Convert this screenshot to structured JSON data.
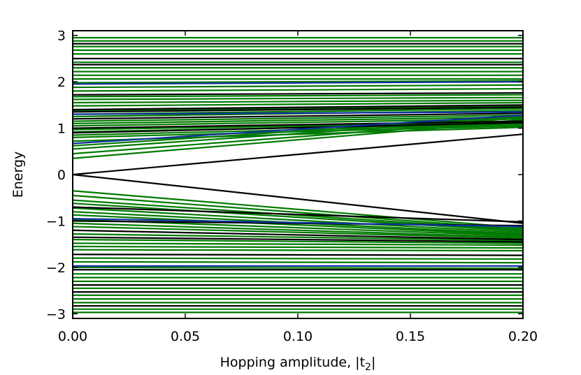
{
  "chart_data": {
    "type": "line",
    "title": "",
    "xlabel": "Hopping amplitude, |t",
    "xlabel_sub": "2",
    "xlabel_end": "|",
    "ylabel": "Energy",
    "xlim": [
      0.0,
      0.2
    ],
    "ylim": [
      -3.1,
      3.1
    ],
    "x_ticks": [
      0.0,
      0.05,
      0.1,
      0.15,
      0.2
    ],
    "x_tick_labels": [
      "0.00",
      "0.05",
      "0.10",
      "0.15",
      "0.20"
    ],
    "y_ticks": [
      -3,
      -2,
      -1,
      0,
      1,
      2,
      3
    ],
    "y_tick_labels": [
      "−3",
      "−2",
      "−1",
      "0",
      "1",
      "2",
      "3"
    ],
    "grid": false,
    "colors": {
      "green": "#007a00",
      "black": "#000000",
      "blue": "#1030a0"
    },
    "series": [
      {
        "color": "green",
        "y": [
          2.95,
          2.95
        ]
      },
      {
        "color": "green",
        "y": [
          2.88,
          2.88
        ]
      },
      {
        "color": "black",
        "y": [
          2.82,
          2.82
        ]
      },
      {
        "color": "green",
        "y": [
          2.76,
          2.76
        ]
      },
      {
        "color": "green",
        "y": [
          2.68,
          2.68
        ]
      },
      {
        "color": "green",
        "y": [
          2.6,
          2.6
        ]
      },
      {
        "color": "black",
        "y": [
          2.5,
          2.5
        ]
      },
      {
        "color": "green",
        "y": [
          2.42,
          2.42
        ]
      },
      {
        "color": "black",
        "y": [
          2.37,
          2.37
        ]
      },
      {
        "color": "green",
        "y": [
          2.3,
          2.3
        ]
      },
      {
        "color": "green",
        "y": [
          2.22,
          2.22
        ]
      },
      {
        "color": "green",
        "y": [
          2.14,
          2.14
        ]
      },
      {
        "color": "green",
        "y": [
          2.06,
          2.06
        ]
      },
      {
        "color": "green",
        "y": [
          1.98,
          2.02
        ]
      },
      {
        "color": "blue",
        "y": [
          1.95,
          2.0
        ]
      },
      {
        "color": "green",
        "y": [
          1.88,
          1.93
        ]
      },
      {
        "color": "green",
        "y": [
          1.8,
          1.85
        ]
      },
      {
        "color": "black",
        "y": [
          1.72,
          1.76
        ]
      },
      {
        "color": "green",
        "y": [
          1.68,
          1.72
        ]
      },
      {
        "color": "green",
        "y": [
          1.62,
          1.66
        ]
      },
      {
        "color": "green",
        "y": [
          1.55,
          1.6
        ]
      },
      {
        "color": "green",
        "y": [
          1.48,
          1.55
        ]
      },
      {
        "color": "black",
        "y": [
          1.4,
          1.5
        ]
      },
      {
        "color": "green",
        "y": [
          1.38,
          1.47
        ]
      },
      {
        "color": "black",
        "y": [
          1.35,
          1.45
        ]
      },
      {
        "color": "green",
        "y": [
          1.3,
          1.42
        ]
      },
      {
        "color": "blue",
        "y": [
          1.3,
          1.35
        ]
      },
      {
        "color": "green",
        "y": [
          1.25,
          1.38
        ]
      },
      {
        "color": "black",
        "y": [
          1.2,
          1.32
        ]
      },
      {
        "color": "green",
        "y": [
          1.15,
          1.28
        ]
      },
      {
        "color": "green",
        "y": [
          1.1,
          1.24
        ]
      },
      {
        "color": "green",
        "y": [
          1.05,
          1.2
        ]
      },
      {
        "color": "black",
        "y": [
          1.0,
          1.15
        ]
      },
      {
        "color": "green",
        "y": [
          0.97,
          1.12
        ]
      },
      {
        "color": "green",
        "y": [
          0.92,
          1.1
        ]
      },
      {
        "color": "black",
        "y": [
          0.9,
          1.12
        ]
      },
      {
        "color": "green",
        "y": [
          0.85,
          1.08
        ]
      },
      {
        "color": "green",
        "y": [
          0.8,
          1.05
        ]
      },
      {
        "color": "green",
        "y": [
          0.72,
          1.02
        ]
      },
      {
        "color": "blue",
        "y": [
          0.67,
          1.28
        ]
      },
      {
        "color": "green",
        "y": [
          0.62,
          1.25
        ]
      },
      {
        "color": "green",
        "y": [
          0.55,
          1.22
        ]
      },
      {
        "color": "green",
        "y": [
          0.45,
          1.18
        ]
      },
      {
        "color": "green",
        "y": [
          0.35,
          1.15
        ]
      },
      {
        "color": "black",
        "y": [
          0.0,
          0.87
        ]
      },
      {
        "color": "black",
        "y": [
          0.0,
          -1.05
        ]
      },
      {
        "color": "green",
        "y": [
          -0.35,
          -1.15
        ]
      },
      {
        "color": "green",
        "y": [
          -0.45,
          -1.18
        ]
      },
      {
        "color": "green",
        "y": [
          -0.55,
          -1.2
        ]
      },
      {
        "color": "green",
        "y": [
          -0.62,
          -1.22
        ]
      },
      {
        "color": "black",
        "y": [
          -0.7,
          -1.02
        ]
      },
      {
        "color": "green",
        "y": [
          -0.72,
          -1.25
        ]
      },
      {
        "color": "green",
        "y": [
          -0.8,
          -1.28
        ]
      },
      {
        "color": "green",
        "y": [
          -0.87,
          -1.3
        ]
      },
      {
        "color": "blue",
        "y": [
          -0.95,
          -1.12
        ]
      },
      {
        "color": "green",
        "y": [
          -0.97,
          -1.32
        ]
      },
      {
        "color": "black",
        "y": [
          -1.0,
          -1.1
        ]
      },
      {
        "color": "green",
        "y": [
          -1.05,
          -1.35
        ]
      },
      {
        "color": "green",
        "y": [
          -1.12,
          -1.37
        ]
      },
      {
        "color": "black",
        "y": [
          -1.2,
          -1.4
        ]
      },
      {
        "color": "green",
        "y": [
          -1.28,
          -1.42
        ]
      },
      {
        "color": "black",
        "y": [
          -1.35,
          -1.45
        ]
      },
      {
        "color": "green",
        "y": [
          -1.4,
          -1.48
        ]
      },
      {
        "color": "green",
        "y": [
          -1.48,
          -1.52
        ]
      },
      {
        "color": "green",
        "y": [
          -1.55,
          -1.58
        ]
      },
      {
        "color": "green",
        "y": [
          -1.62,
          -1.64
        ]
      },
      {
        "color": "black",
        "y": [
          -1.72,
          -1.74
        ]
      },
      {
        "color": "green",
        "y": [
          -1.8,
          -1.82
        ]
      },
      {
        "color": "green",
        "y": [
          -1.88,
          -1.9
        ]
      },
      {
        "color": "blue",
        "y": [
          -1.97,
          -1.97
        ]
      },
      {
        "color": "green",
        "y": [
          -2.0,
          -2.02
        ]
      },
      {
        "color": "black",
        "y": [
          -2.05,
          -2.05
        ]
      },
      {
        "color": "green",
        "y": [
          -2.14,
          -2.14
        ]
      },
      {
        "color": "green",
        "y": [
          -2.22,
          -2.22
        ]
      },
      {
        "color": "green",
        "y": [
          -2.3,
          -2.3
        ]
      },
      {
        "color": "black",
        "y": [
          -2.38,
          -2.38
        ]
      },
      {
        "color": "green",
        "y": [
          -2.45,
          -2.45
        ]
      },
      {
        "color": "black",
        "y": [
          -2.53,
          -2.53
        ]
      },
      {
        "color": "green",
        "y": [
          -2.6,
          -2.6
        ]
      },
      {
        "color": "green",
        "y": [
          -2.68,
          -2.68
        ]
      },
      {
        "color": "green",
        "y": [
          -2.76,
          -2.76
        ]
      },
      {
        "color": "black",
        "y": [
          -2.83,
          -2.83
        ]
      },
      {
        "color": "green",
        "y": [
          -2.9,
          -2.9
        ]
      },
      {
        "color": "green",
        "y": [
          -2.97,
          -2.97
        ]
      }
    ]
  }
}
